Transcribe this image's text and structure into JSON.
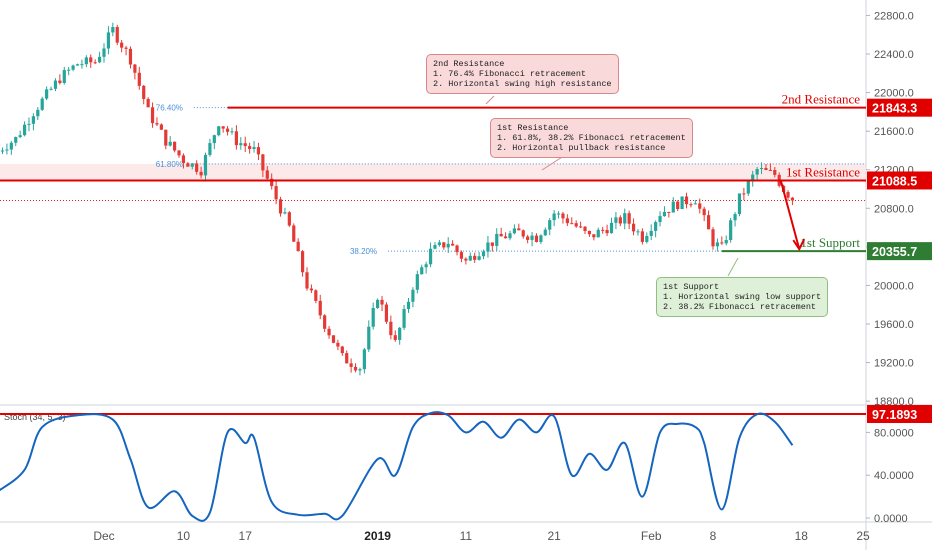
{
  "colors": {
    "bull": "#26a69a",
    "bear": "#e53935",
    "resistance": "#e00000",
    "support": "#2e7d32",
    "stoch": "#1565c0",
    "fib": "#4a90d9",
    "axis_text": "#555555"
  },
  "chart_data": [
    {
      "type": "candlestick",
      "title": "",
      "price_axis": {
        "ticks": [
          "22800.0",
          "22400.0",
          "22000.0",
          "21600.0",
          "21200.0",
          "20800.0",
          "20400.0",
          "20000.0",
          "19600.0",
          "19200.0",
          "18800.0"
        ],
        "ylim": [
          18760,
          22960
        ]
      },
      "x_axis": {
        "ticks": [
          "Dec",
          "10",
          "17",
          "2019",
          "11",
          "21",
          "Feb",
          "8",
          "18",
          "25"
        ],
        "bold_ticks": [
          "2019"
        ]
      },
      "price_series": [
        {
          "d": "Nov 19",
          "v": 21400
        },
        {
          "d": "Nov 21",
          "v": 21520
        },
        {
          "d": "Nov 23",
          "v": 21800
        },
        {
          "d": "Nov 26",
          "v": 22150
        },
        {
          "d": "Nov 28",
          "v": 22300
        },
        {
          "d": "Nov 30",
          "v": 22320
        },
        {
          "d": "Dec 2",
          "v": 22650
        },
        {
          "d": "Dec 4",
          "v": 22350
        },
        {
          "d": "Dec 6",
          "v": 21800
        },
        {
          "d": "Dec 8",
          "v": 21500
        },
        {
          "d": "Dec 10",
          "v": 21300
        },
        {
          "d": "Dec 12",
          "v": 21200
        },
        {
          "d": "Dec 14",
          "v": 21700
        },
        {
          "d": "Dec 16",
          "v": 21500
        },
        {
          "d": "Dec 18",
          "v": 21400
        },
        {
          "d": "Dec 20",
          "v": 21000
        },
        {
          "d": "Dec 22",
          "v": 20600
        },
        {
          "d": "Dec 24",
          "v": 20000
        },
        {
          "d": "Dec 26",
          "v": 19600
        },
        {
          "d": "Dec 28",
          "v": 19250
        },
        {
          "d": "Dec 30",
          "v": 19150
        },
        {
          "d": "Jan 1",
          "v": 19900
        },
        {
          "d": "Jan 3",
          "v": 19400
        },
        {
          "d": "Jan 5",
          "v": 20000
        },
        {
          "d": "Jan 7",
          "v": 20350
        },
        {
          "d": "Jan 9",
          "v": 20450
        },
        {
          "d": "Jan 11",
          "v": 20250
        },
        {
          "d": "Jan 13",
          "v": 20400
        },
        {
          "d": "Jan 15",
          "v": 20500
        },
        {
          "d": "Jan 17",
          "v": 20550
        },
        {
          "d": "Jan 19",
          "v": 20500
        },
        {
          "d": "Jan 21",
          "v": 20750
        },
        {
          "d": "Jan 23",
          "v": 20650
        },
        {
          "d": "Jan 25",
          "v": 20500
        },
        {
          "d": "Jan 27",
          "v": 20600
        },
        {
          "d": "Jan 29",
          "v": 20700
        },
        {
          "d": "Jan 31",
          "v": 20500
        },
        {
          "d": "Feb 2",
          "v": 20750
        },
        {
          "d": "Feb 4",
          "v": 20850
        },
        {
          "d": "Feb 6",
          "v": 20900
        },
        {
          "d": "Feb 8",
          "v": 20450
        },
        {
          "d": "Feb 9",
          "v": 20380
        },
        {
          "d": "Feb 11",
          "v": 20900
        },
        {
          "d": "Feb 13",
          "v": 21200
        },
        {
          "d": "Feb 15",
          "v": 21150
        },
        {
          "d": "Feb 16",
          "v": 21000
        },
        {
          "d": "Feb 17",
          "v": 20900
        }
      ],
      "levels": [
        {
          "name": "2nd Resistance",
          "value": "21843.3",
          "price": 21843.3
        },
        {
          "name": "1st Resistance",
          "value": "21088.5",
          "price": 21088.5
        },
        {
          "name": "1st Support",
          "value": "20355.7",
          "price": 20355.7
        }
      ],
      "fib_labels": [
        {
          "label": "76.40%",
          "price": 21843.3
        },
        {
          "label": "61.80%",
          "price": 21260
        },
        {
          "label": "38.20%",
          "price": 20355.7
        }
      ],
      "callouts": {
        "resistance2": {
          "lines": [
            "2nd Resistance",
            "1. 76.4% Fibonacci retracement",
            "2. Horizontal swing high resistance"
          ]
        },
        "resistance1": {
          "lines": [
            "1st Resistance",
            "1. 61.8%, 38.2% Fibonacci retracement",
            "2. Horizontal pullback resistance"
          ]
        },
        "support1": {
          "lines": [
            "1st Support",
            "1. Horizontal swing low support",
            "2. 38.2% Fibonacci retracement"
          ]
        }
      }
    },
    {
      "type": "line",
      "title": "Stoch (34, 5, 3)",
      "y_axis": {
        "ticks": [
          "80.0000",
          "40.0000",
          "0.0000"
        ],
        "ylim": [
          0,
          100
        ]
      },
      "level": {
        "value": "97.1893",
        "y": 97.1893
      },
      "series": [
        {
          "d": "Nov 19",
          "v": 25
        },
        {
          "d": "Nov 22",
          "v": 45
        },
        {
          "d": "Nov 24",
          "v": 85
        },
        {
          "d": "Nov 28",
          "v": 96
        },
        {
          "d": "Dec 2",
          "v": 92
        },
        {
          "d": "Dec 4",
          "v": 55
        },
        {
          "d": "Dec 6",
          "v": 10
        },
        {
          "d": "Dec 9",
          "v": 25
        },
        {
          "d": "Dec 11",
          "v": 2
        },
        {
          "d": "Dec 13",
          "v": 5
        },
        {
          "d": "Dec 15",
          "v": 80
        },
        {
          "d": "Dec 17",
          "v": 70
        },
        {
          "d": "Dec 18",
          "v": 75
        },
        {
          "d": "Dec 20",
          "v": 15
        },
        {
          "d": "Dec 23",
          "v": 3
        },
        {
          "d": "Dec 26",
          "v": 4
        },
        {
          "d": "Dec 28",
          "v": 2
        },
        {
          "d": "Jan 1",
          "v": 55
        },
        {
          "d": "Jan 3",
          "v": 40
        },
        {
          "d": "Jan 5",
          "v": 85
        },
        {
          "d": "Jan 7",
          "v": 98
        },
        {
          "d": "Jan 9",
          "v": 96
        },
        {
          "d": "Jan 11",
          "v": 80
        },
        {
          "d": "Jan 13",
          "v": 90
        },
        {
          "d": "Jan 15",
          "v": 75
        },
        {
          "d": "Jan 17",
          "v": 92
        },
        {
          "d": "Jan 19",
          "v": 80
        },
        {
          "d": "Jan 21",
          "v": 95
        },
        {
          "d": "Jan 23",
          "v": 40
        },
        {
          "d": "Jan 25",
          "v": 60
        },
        {
          "d": "Jan 27",
          "v": 45
        },
        {
          "d": "Jan 29",
          "v": 70
        },
        {
          "d": "Jan 31",
          "v": 20
        },
        {
          "d": "Feb 2",
          "v": 80
        },
        {
          "d": "Feb 4",
          "v": 88
        },
        {
          "d": "Feb 6",
          "v": 85
        },
        {
          "d": "Feb 7",
          "v": 70
        },
        {
          "d": "Feb 9",
          "v": 8
        },
        {
          "d": "Feb 11",
          "v": 75
        },
        {
          "d": "Feb 13",
          "v": 97
        },
        {
          "d": "Feb 15",
          "v": 90
        },
        {
          "d": "Feb 17",
          "v": 68
        }
      ]
    }
  ]
}
